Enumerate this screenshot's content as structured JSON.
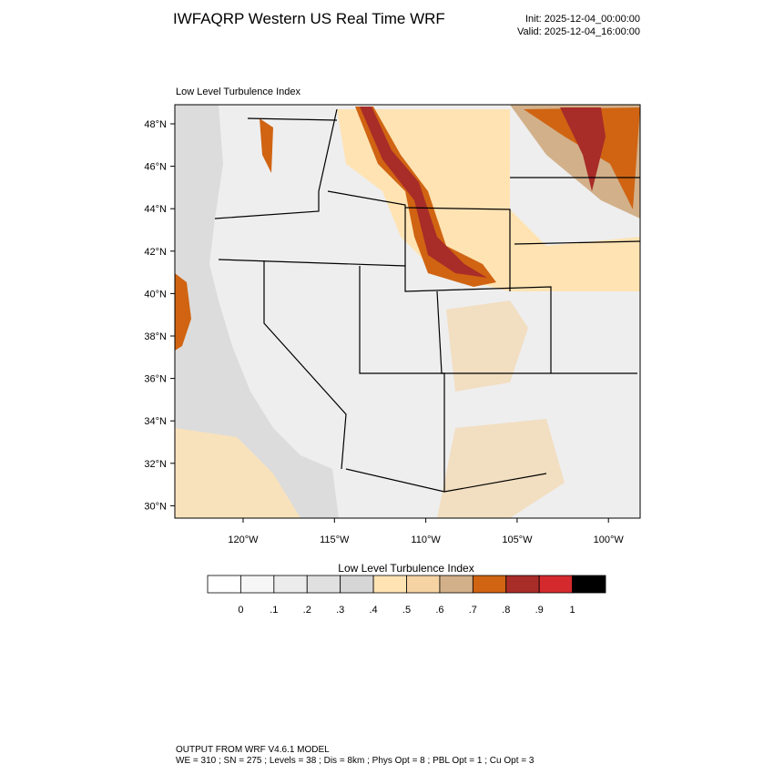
{
  "header": {
    "title": "IWFAQRP Western US Real Time WRF",
    "init": "Init: 2025-12-04_00:00:00",
    "valid": "Valid: 2025-12-04_16:00:00"
  },
  "map": {
    "subtitle": "Low Level Turbulence Index",
    "lat_labels": [
      "48°N",
      "46°N",
      "44°N",
      "42°N",
      "40°N",
      "38°N",
      "36°N",
      "34°N",
      "32°N",
      "30°N"
    ],
    "lon_labels": [
      "120°W",
      "115°W",
      "110°W",
      "105°W",
      "100°W"
    ]
  },
  "colorbar": {
    "title": "Low Level Turbulence Index",
    "colors": [
      "#ffffff",
      "#f6f6f6",
      "#ececec",
      "#e0e0e0",
      "#d6d6d6",
      "#ffe3b3",
      "#f5d3a3",
      "#d2b08a",
      "#d06412",
      "#a82c28",
      "#d42a2e",
      "#000000"
    ],
    "labels": [
      "0",
      ".1",
      ".2",
      ".3",
      ".4",
      ".5",
      ".6",
      ".7",
      ".8",
      ".9",
      "1"
    ]
  },
  "footer": {
    "line1": "OUTPUT FROM WRF V4.6.1 MODEL",
    "line2": "WE = 310 ; SN = 275 ; Levels = 38 ; Dis = 8km ; Phys Opt = 8 ; PBL Opt = 1 ; Cu Opt = 3"
  }
}
